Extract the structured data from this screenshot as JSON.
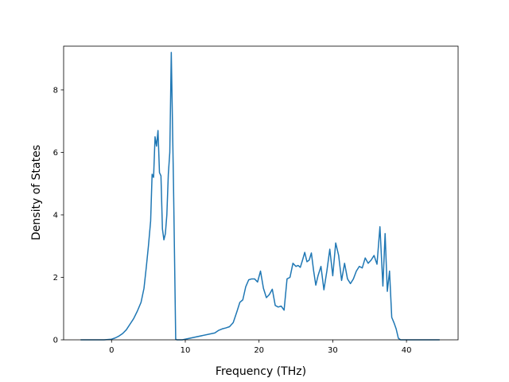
{
  "chart_data": {
    "type": "line",
    "title": "",
    "xlabel": "Frequency (THz)",
    "ylabel": "Density of States",
    "xlim": [
      -6.5,
      47
    ],
    "ylim": [
      0,
      9.4
    ],
    "x_ticks": [
      0,
      10,
      20,
      30,
      40
    ],
    "x_tick_labels": [
      "0",
      "10",
      "20",
      "30",
      "40"
    ],
    "y_ticks": [
      0,
      2,
      4,
      6,
      8
    ],
    "y_tick_labels": [
      "0",
      "2",
      "4",
      "6",
      "8"
    ],
    "grid": false,
    "legend": "none",
    "series": [
      {
        "color": "#1f77b4",
        "x": [
          -4.2,
          -1.0,
          0.0,
          0.5,
          1.0,
          1.5,
          2.0,
          2.5,
          3.0,
          3.5,
          4.0,
          4.4,
          4.7,
          5.0,
          5.3,
          5.5,
          5.7,
          5.9,
          6.1,
          6.3,
          6.5,
          6.7,
          6.9,
          7.1,
          7.3,
          7.5,
          7.7,
          7.9,
          8.1,
          8.4,
          8.7,
          8.85,
          9.05,
          9.3,
          9.6,
          14.0,
          14.5,
          15.0,
          15.5,
          16.0,
          16.5,
          17.0,
          17.4,
          17.8,
          18.2,
          18.6,
          19.0,
          19.4,
          19.8,
          20.2,
          20.6,
          21.0,
          21.4,
          21.8,
          22.2,
          22.6,
          23.0,
          23.4,
          23.8,
          24.2,
          24.6,
          25.0,
          25.3,
          25.6,
          25.9,
          26.2,
          26.5,
          26.8,
          27.1,
          27.4,
          27.7,
          28.0,
          28.4,
          28.8,
          29.2,
          29.6,
          30.0,
          30.4,
          30.8,
          31.2,
          31.6,
          32.0,
          32.4,
          32.8,
          33.2,
          33.6,
          34.0,
          34.4,
          34.8,
          35.2,
          35.6,
          36.0,
          36.4,
          36.8,
          37.1,
          37.4,
          37.7,
          38.0,
          38.3,
          38.6,
          38.9,
          39.2,
          39.5,
          40.0,
          40.5,
          44.5
        ],
        "y": [
          0,
          0,
          0.02,
          0.06,
          0.12,
          0.2,
          0.32,
          0.5,
          0.68,
          0.92,
          1.2,
          1.65,
          2.3,
          3.0,
          3.8,
          5.3,
          5.2,
          6.5,
          6.2,
          6.7,
          5.35,
          5.25,
          3.55,
          3.2,
          3.4,
          4.0,
          5.3,
          6.0,
          9.2,
          5.0,
          0.02,
          0.0,
          0.0,
          0.0,
          0.0,
          0.22,
          0.3,
          0.35,
          0.38,
          0.42,
          0.55,
          0.9,
          1.2,
          1.28,
          1.7,
          1.92,
          1.95,
          1.95,
          1.85,
          2.2,
          1.65,
          1.35,
          1.45,
          1.62,
          1.1,
          1.05,
          1.08,
          0.95,
          1.95,
          2.0,
          2.45,
          2.35,
          2.38,
          2.32,
          2.55,
          2.8,
          2.5,
          2.55,
          2.78,
          2.22,
          1.75,
          2.05,
          2.35,
          1.6,
          2.2,
          2.9,
          2.05,
          3.1,
          2.7,
          1.9,
          2.45,
          1.95,
          1.8,
          1.95,
          2.2,
          2.35,
          2.3,
          2.62,
          2.45,
          2.55,
          2.7,
          2.42,
          3.62,
          1.72,
          3.4,
          1.55,
          2.2,
          0.72,
          0.55,
          0.35,
          0.05,
          0.0,
          0.0,
          0.0,
          0.0,
          0.0
        ]
      }
    ]
  }
}
